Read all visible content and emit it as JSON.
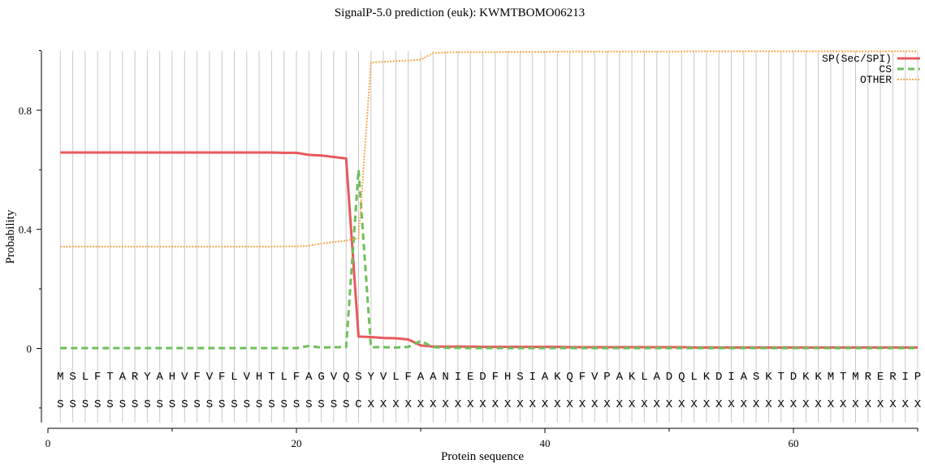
{
  "chart_data": {
    "type": "line",
    "title": "SignalP-5.0 prediction (euk):  KWMTBOMO06213",
    "xlabel": "Protein sequence",
    "ylabel": "Probability",
    "xlim": [
      0,
      70
    ],
    "ylim": [
      -0.25,
      1.0
    ],
    "x_ticks": [
      0,
      20,
      40,
      60
    ],
    "x_tick_labels": [
      "0",
      "20",
      "40",
      "60"
    ],
    "y_ticks": [
      0,
      0.4,
      0.8
    ],
    "y_tick_labels": [
      "0",
      "0.4",
      "0.8"
    ],
    "grid": "vertical line at every residue position 1–70",
    "legend_position": "top-right",
    "sequence": "MSLFTARYAHVFVFLVHTLFAGVQSYVLFAANIEDFHSIAKQFVPAKLADQLKDIASKTDKKMTMRERIP",
    "annotation": "SSSSSSSSSSSSSSSSSSSSSSSSCXXXXXXXXXXXXXXXXXXXXXXXXXXXXXXXXXXXXXXXXXXXXX",
    "x": [
      1,
      2,
      3,
      4,
      5,
      6,
      7,
      8,
      9,
      10,
      11,
      12,
      13,
      14,
      15,
      16,
      17,
      18,
      19,
      20,
      21,
      22,
      23,
      24,
      25,
      26,
      27,
      28,
      29,
      30,
      31,
      32,
      33,
      34,
      35,
      36,
      37,
      38,
      39,
      40,
      41,
      42,
      43,
      44,
      45,
      46,
      47,
      48,
      49,
      50,
      51,
      52,
      53,
      54,
      55,
      56,
      57,
      58,
      59,
      60,
      61,
      62,
      63,
      64,
      65,
      66,
      67,
      68,
      69,
      70
    ],
    "series": [
      {
        "name": "SP(Sec/SPI)",
        "color": "#e8585b",
        "dash": "solid",
        "values": [
          0.658,
          0.658,
          0.658,
          0.658,
          0.658,
          0.658,
          0.658,
          0.658,
          0.658,
          0.658,
          0.658,
          0.658,
          0.658,
          0.658,
          0.658,
          0.658,
          0.658,
          0.658,
          0.657,
          0.657,
          0.65,
          0.648,
          0.643,
          0.638,
          0.04,
          0.038,
          0.035,
          0.034,
          0.03,
          0.01,
          0.006,
          0.006,
          0.006,
          0.006,
          0.005,
          0.005,
          0.005,
          0.005,
          0.005,
          0.005,
          0.005,
          0.004,
          0.004,
          0.004,
          0.004,
          0.004,
          0.004,
          0.004,
          0.004,
          0.004,
          0.004,
          0.003,
          0.003,
          0.003,
          0.003,
          0.003,
          0.003,
          0.003,
          0.003,
          0.003,
          0.003,
          0.003,
          0.003,
          0.003,
          0.003,
          0.003,
          0.003,
          0.003,
          0.003,
          0.003
        ]
      },
      {
        "name": "CS",
        "color": "#6dbf5a",
        "dash": "dashed",
        "values": [
          0.001,
          0.001,
          0.001,
          0.001,
          0.001,
          0.001,
          0.001,
          0.001,
          0.001,
          0.001,
          0.001,
          0.001,
          0.001,
          0.001,
          0.001,
          0.001,
          0.001,
          0.001,
          0.001,
          0.001,
          0.008,
          0.003,
          0.004,
          0.004,
          0.6,
          0.004,
          0.004,
          0.003,
          0.005,
          0.025,
          0.004,
          0.002,
          0.002,
          0.001,
          0.001,
          0.001,
          0.001,
          0.001,
          0.001,
          0.001,
          0.001,
          0.001,
          0.001,
          0.001,
          0.001,
          0.001,
          0.001,
          0.001,
          0.001,
          0.001,
          0.001,
          0.001,
          0.001,
          0.001,
          0.001,
          0.001,
          0.001,
          0.001,
          0.001,
          0.001,
          0.001,
          0.001,
          0.001,
          0.001,
          0.001,
          0.001,
          0.001,
          0.001,
          0.001,
          0.001
        ]
      },
      {
        "name": "OTHER",
        "color": "#f5a94a",
        "dash": "dotted",
        "values": [
          0.342,
          0.342,
          0.342,
          0.342,
          0.342,
          0.342,
          0.342,
          0.342,
          0.342,
          0.342,
          0.342,
          0.342,
          0.342,
          0.342,
          0.342,
          0.342,
          0.342,
          0.342,
          0.343,
          0.343,
          0.345,
          0.352,
          0.357,
          0.362,
          0.37,
          0.96,
          0.963,
          0.965,
          0.967,
          0.97,
          0.992,
          0.994,
          0.995,
          0.995,
          0.995,
          0.995,
          0.996,
          0.996,
          0.996,
          0.996,
          0.997,
          0.997,
          0.997,
          0.997,
          0.997,
          0.997,
          0.997,
          0.997,
          0.997,
          0.997,
          0.997,
          0.998,
          0.998,
          0.998,
          0.998,
          0.998,
          0.998,
          0.998,
          0.998,
          0.998,
          0.998,
          0.998,
          0.998,
          0.998,
          0.998,
          0.998,
          0.998,
          0.998,
          0.998,
          0.998
        ]
      }
    ]
  }
}
